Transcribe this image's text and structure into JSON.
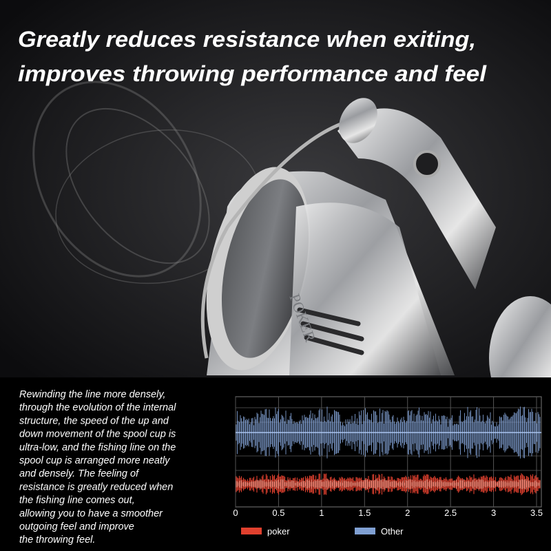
{
  "header": {
    "title_lines": [
      "Greatly reduces resistance when exiting,",
      "improves throwing performance and feel"
    ]
  },
  "product_label": "POKER",
  "description": [
    "Rewinding the line more densely,",
    "through the evolution of the internal",
    "structure, the speed of the up and",
    "down movement of the spool cup is",
    "ultra-low, and the fishing line on the",
    "spool cup is arranged more neatly",
    "and densely. The feeling of",
    "resistance is greatly reduced when",
    "the fishing line comes out,",
    "allowing you to have a smoother",
    "outgoing feel and improve",
    "the throwing feel."
  ],
  "chart": {
    "xlim": [
      0,
      3.5
    ],
    "xticks": [
      0,
      0.5,
      1,
      1.5,
      2,
      2.5,
      3,
      3.5
    ],
    "legend": [
      {
        "name": "poker",
        "color": "#e0402e"
      },
      {
        "name": "Other",
        "color": "#7f9fd2"
      }
    ]
  }
}
